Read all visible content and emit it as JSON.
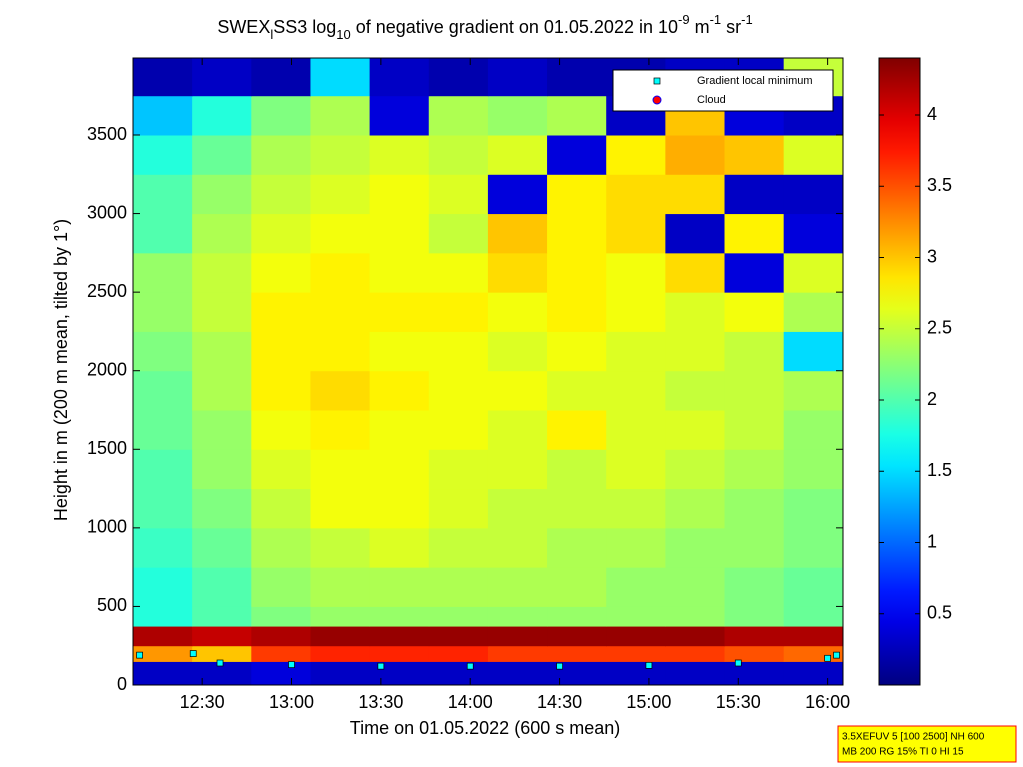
{
  "chart_data": {
    "type": "heatmap",
    "title_parts": [
      {
        "text": "SWEX",
        "shift": "base"
      },
      {
        "text": "l",
        "shift": "sub"
      },
      {
        "text": "SS3 log",
        "shift": "base"
      },
      {
        "text": "10",
        "shift": "sub"
      },
      {
        "text": " of negative gradient on 01.05.2022 in 10",
        "shift": "base"
      },
      {
        "text": "-9",
        "shift": "super"
      },
      {
        "text": " m",
        "shift": "base"
      },
      {
        "text": "-1",
        "shift": "super"
      },
      {
        "text": " sr",
        "shift": "base"
      },
      {
        "text": "-1",
        "shift": "super"
      }
    ],
    "x_label": "Time on 01.05.2022 (600 s mean)",
    "y_label": "Height in m (200 m mean, tilted by 1°)",
    "xlim": [
      12.113,
      16.086
    ],
    "ylim": [
      0,
      3990
    ],
    "clim": [
      0,
      4.4
    ],
    "colormap": "jet",
    "xticks": [
      {
        "value": 12.5,
        "label": "12:30"
      },
      {
        "value": 13,
        "label": "13:00"
      },
      {
        "value": 13.5,
        "label": "13:30"
      },
      {
        "value": 14,
        "label": "14:00"
      },
      {
        "value": 14.5,
        "label": "14:30"
      },
      {
        "value": 15,
        "label": "15:00"
      },
      {
        "value": 15.5,
        "label": "15:30"
      },
      {
        "value": 16,
        "label": "16:00"
      }
    ],
    "yticks": [
      0,
      500,
      1000,
      1500,
      2000,
      2500,
      3000,
      3500
    ],
    "cticks": [
      0.5,
      1,
      1.5,
      2,
      2.5,
      3,
      3.5,
      4
    ],
    "x_bins": [
      12.113,
      12.444,
      12.775,
      13.106,
      13.437,
      13.768,
      14.099,
      14.43,
      14.761,
      15.092,
      15.423,
      15.754,
      16.086
    ],
    "y_bins": [
      0,
      150,
      250,
      375,
      500,
      750,
      1000,
      1250,
      1500,
      1750,
      2000,
      2250,
      2500,
      2750,
      3000,
      3250,
      3500,
      3750,
      3990
    ],
    "z": [
      [
        0.3,
        0.3,
        0.4,
        0.3,
        0.3,
        0.3,
        0.3,
        0.3,
        0.3,
        0.3,
        0.3,
        0.3
      ],
      [
        3.2,
        3.0,
        3.6,
        3.7,
        3.7,
        3.7,
        3.6,
        3.6,
        3.6,
        3.6,
        3.5,
        3.4
      ],
      [
        4.2,
        4.1,
        4.2,
        4.3,
        4.3,
        4.3,
        4.3,
        4.3,
        4.3,
        4.3,
        4.2,
        4.2
      ],
      [
        1.8,
        2.0,
        2.2,
        2.3,
        2.3,
        2.3,
        2.3,
        2.3,
        2.3,
        2.3,
        2.2,
        2.1
      ],
      [
        1.8,
        2.0,
        2.3,
        2.4,
        2.4,
        2.4,
        2.4,
        2.4,
        2.3,
        2.3,
        2.2,
        2.1
      ],
      [
        1.9,
        2.1,
        2.4,
        2.5,
        2.6,
        2.5,
        2.5,
        2.4,
        2.4,
        2.3,
        2.3,
        2.2
      ],
      [
        2.0,
        2.2,
        2.5,
        2.7,
        2.7,
        2.6,
        2.5,
        2.5,
        2.5,
        2.4,
        2.3,
        2.2
      ],
      [
        2.0,
        2.3,
        2.6,
        2.7,
        2.7,
        2.6,
        2.6,
        2.5,
        2.6,
        2.5,
        2.4,
        2.3
      ],
      [
        2.1,
        2.3,
        2.7,
        2.8,
        2.7,
        2.7,
        2.6,
        2.8,
        2.6,
        2.6,
        2.5,
        2.3
      ],
      [
        2.1,
        2.4,
        2.8,
        2.9,
        2.8,
        2.7,
        2.7,
        2.6,
        2.6,
        2.5,
        2.5,
        2.4
      ],
      [
        2.2,
        2.4,
        2.8,
        2.8,
        2.7,
        2.7,
        2.6,
        2.7,
        2.6,
        2.6,
        2.5,
        1.5
      ],
      [
        2.3,
        2.5,
        2.8,
        2.8,
        2.8,
        2.8,
        2.7,
        2.8,
        2.7,
        2.6,
        2.7,
        2.4
      ],
      [
        2.3,
        2.5,
        2.7,
        2.8,
        2.7,
        2.7,
        2.9,
        2.8,
        2.7,
        2.9,
        0.4,
        2.6
      ],
      [
        2.0,
        2.4,
        2.6,
        2.7,
        2.7,
        2.5,
        3.0,
        2.8,
        2.9,
        0.3,
        2.8,
        0.4
      ],
      [
        2.0,
        2.3,
        2.5,
        2.6,
        2.7,
        2.6,
        0.4,
        2.8,
        2.9,
        2.9,
        0.3,
        0.3
      ],
      [
        1.8,
        2.1,
        2.4,
        2.5,
        2.6,
        2.5,
        2.6,
        0.4,
        2.8,
        3.1,
        3.0,
        2.6
      ],
      [
        1.4,
        1.8,
        2.2,
        2.4,
        0.4,
        2.4,
        2.3,
        2.4,
        0.3,
        3.0,
        0.4,
        0.3
      ],
      [
        0.2,
        0.3,
        0.2,
        1.5,
        0.3,
        0.2,
        0.3,
        0.2,
        0.2,
        0.3,
        0.3,
        2.5
      ]
    ],
    "series": [
      {
        "name": "Gradient local minimum",
        "color": "#00ffff",
        "x": [
          12.15,
          12.45,
          12.6,
          13,
          13.5,
          14,
          14.5,
          15,
          15.5,
          16,
          16.05
        ],
        "values": [
          190,
          200,
          140,
          130,
          120,
          120,
          120,
          125,
          140,
          170,
          190
        ]
      },
      {
        "name": "Cloud",
        "color": "#ff0000",
        "x": [],
        "values": []
      }
    ],
    "legend": "upper right",
    "info_box": [
      "3.5XEFUV 5 [100 2500] NH 600",
      "MB 200 RG 15% TI 0 HI 15"
    ]
  }
}
